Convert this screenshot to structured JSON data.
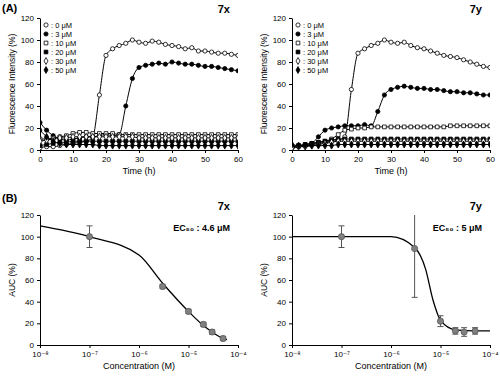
{
  "panel_labels": [
    "(A)",
    "(B)"
  ],
  "chart_data": [
    {
      "type": "line",
      "title": "7x",
      "x_label": "Time (h)",
      "y_label": "Fluorescence Intensity (%)",
      "xlim": [
        0,
        60
      ],
      "xticks": [
        0,
        10,
        20,
        30,
        40,
        50,
        60
      ],
      "ylim": [
        0,
        120
      ],
      "yticks": [
        0,
        20,
        40,
        60,
        80,
        100,
        120
      ],
      "grid": false,
      "legend": "upper left",
      "x": [
        0,
        2,
        4,
        6,
        8,
        10,
        12,
        14,
        16,
        18,
        20,
        22,
        24,
        26,
        28,
        30,
        32,
        34,
        36,
        38,
        40,
        42,
        44,
        46,
        48,
        50,
        52,
        54,
        56,
        58,
        60
      ],
      "series": [
        {
          "name": ": 0 μM",
          "color": "#000000",
          "marker": "circle-open",
          "line_style": "solid",
          "values": [
            2,
            3,
            3,
            4,
            5,
            6,
            7,
            8,
            12,
            50,
            86,
            92,
            95,
            97,
            100,
            98,
            97,
            99,
            98,
            96,
            95,
            94,
            92,
            93,
            90,
            90,
            89,
            88,
            88,
            87,
            86
          ]
        },
        {
          "name": ": 3 μM",
          "color": "#000000",
          "marker": "circle",
          "line_style": "solid",
          "values": [
            25,
            18,
            13,
            10,
            9,
            10,
            11,
            12,
            12,
            13,
            14,
            13,
            14,
            40,
            65,
            75,
            77,
            78,
            79,
            78,
            80,
            79,
            78,
            78,
            77,
            76,
            76,
            75,
            74,
            73,
            72
          ]
        },
        {
          "name": ": 10 μM",
          "color": "#000000",
          "marker": "square-open",
          "line_style": "solid",
          "values": [
            10,
            10,
            11,
            12,
            13,
            15,
            16,
            16,
            15,
            15,
            15,
            15,
            14,
            14,
            14,
            14,
            14,
            14,
            14,
            14,
            14,
            14,
            14,
            14,
            14,
            14,
            14,
            14,
            14,
            14,
            14
          ]
        },
        {
          "name": ": 20 μM",
          "color": "#000000",
          "marker": "square",
          "line_style": "solid",
          "values": [
            4,
            5,
            6,
            7,
            7,
            8,
            8,
            8,
            8,
            8,
            8,
            8,
            8,
            8,
            8,
            8,
            8,
            8,
            8,
            8,
            8,
            8,
            8,
            8,
            8,
            8,
            8,
            8,
            8,
            8,
            8
          ]
        },
        {
          "name": ": 30 μM",
          "color": "#000000",
          "marker": "diamond-open",
          "line_style": "solid",
          "values": [
            8,
            9,
            10,
            11,
            11,
            12,
            12,
            12,
            12,
            12,
            12,
            12,
            12,
            12,
            12,
            11,
            11,
            11,
            11,
            11,
            11,
            11,
            11,
            11,
            11,
            11,
            11,
            11,
            11,
            11,
            11
          ]
        },
        {
          "name": ": 50 μM",
          "color": "#000000",
          "marker": "diamond",
          "line_style": "solid",
          "values": [
            18,
            12,
            8,
            6,
            5,
            5,
            5,
            5,
            5,
            4,
            4,
            4,
            4,
            4,
            4,
            4,
            4,
            4,
            4,
            4,
            4,
            4,
            4,
            4,
            4,
            4,
            4,
            4,
            4,
            4,
            4
          ]
        }
      ]
    },
    {
      "type": "line",
      "title": "7y",
      "x_label": "Time (h)",
      "y_label": "Fluorescence Intensity (%)",
      "xlim": [
        0,
        60
      ],
      "xticks": [
        0,
        10,
        20,
        30,
        40,
        50,
        60
      ],
      "ylim": [
        0,
        120
      ],
      "yticks": [
        0,
        20,
        40,
        60,
        80,
        100,
        120
      ],
      "grid": false,
      "legend": "upper left",
      "x": [
        0,
        2,
        4,
        6,
        8,
        10,
        12,
        14,
        16,
        18,
        20,
        22,
        24,
        26,
        28,
        30,
        32,
        34,
        36,
        38,
        40,
        42,
        44,
        46,
        48,
        50,
        52,
        54,
        56,
        58,
        60
      ],
      "series": [
        {
          "name": ": 0 μM",
          "color": "#000000",
          "marker": "circle-open",
          "line_style": "solid",
          "values": [
            2,
            3,
            4,
            5,
            6,
            7,
            8,
            9,
            12,
            55,
            88,
            92,
            95,
            97,
            100,
            98,
            97,
            98,
            95,
            93,
            92,
            90,
            88,
            86,
            85,
            84,
            82,
            80,
            78,
            76,
            75
          ]
        },
        {
          "name": ": 3 μM",
          "color": "#000000",
          "marker": "circle",
          "line_style": "solid",
          "values": [
            3,
            3,
            4,
            6,
            12,
            18,
            20,
            21,
            22,
            22,
            22,
            23,
            22,
            35,
            50,
            55,
            57,
            58,
            57,
            56,
            56,
            55,
            55,
            54,
            53,
            53,
            52,
            52,
            51,
            50,
            50
          ]
        },
        {
          "name": ": 10 μM",
          "color": "#000000",
          "marker": "square-open",
          "line_style": "solid",
          "values": [
            3,
            4,
            5,
            6,
            7,
            8,
            10,
            14,
            18,
            19,
            20,
            20,
            21,
            21,
            21,
            21,
            21,
            21,
            21,
            21,
            21,
            21,
            21,
            21,
            22,
            22,
            22,
            22,
            22,
            22,
            22
          ]
        },
        {
          "name": ": 20 μM",
          "color": "#000000",
          "marker": "square",
          "line_style": "solid",
          "values": [
            3,
            4,
            5,
            6,
            7,
            8,
            9,
            10,
            10,
            10,
            10,
            10,
            10,
            10,
            10,
            10,
            10,
            10,
            10,
            10,
            10,
            10,
            10,
            10,
            10,
            10,
            10,
            10,
            10,
            10,
            10
          ]
        },
        {
          "name": ": 30 μM",
          "color": "#000000",
          "marker": "diamond-open",
          "line_style": "solid",
          "values": [
            2,
            3,
            3,
            4,
            5,
            6,
            7,
            8,
            8,
            8,
            8,
            8,
            8,
            8,
            8,
            8,
            8,
            8,
            8,
            8,
            8,
            8,
            8,
            8,
            8,
            8,
            8,
            8,
            8,
            8,
            8
          ]
        },
        {
          "name": ": 50 μM",
          "color": "#000000",
          "marker": "diamond",
          "line_style": "solid",
          "values": [
            5,
            4,
            4,
            4,
            4,
            4,
            4,
            5,
            5,
            5,
            5,
            5,
            5,
            5,
            5,
            5,
            5,
            5,
            5,
            5,
            5,
            5,
            5,
            5,
            5,
            5,
            5,
            5,
            5,
            5,
            5
          ]
        }
      ]
    },
    {
      "type": "scatter",
      "title": "7x",
      "x_label": "Concentration (M)",
      "y_label": "AUC (%)",
      "log": "x",
      "grid": false,
      "xlim": [
        1e-08,
        0.0001
      ],
      "xticks": [
        {
          "value": 1e-08,
          "label": "10⁻⁸"
        },
        {
          "value": 1e-07,
          "label": "10⁻⁷"
        },
        {
          "value": 1e-06,
          "label": "10⁻⁶"
        },
        {
          "value": 1e-05,
          "label": "10⁻⁵"
        },
        {
          "value": 0.0001,
          "label": "10⁻⁴"
        }
      ],
      "ylim": [
        0,
        120
      ],
      "yticks": [
        0,
        20,
        40,
        60,
        80,
        100,
        120
      ],
      "annotations": [
        "EC₅₀ : 4.6 μM"
      ],
      "series": [
        {
          "color": "#000000",
          "marker": "none",
          "line_style": "solid",
          "x": [
            1e-08,
            1e-07,
            1e-06,
            3e-06,
            1e-05,
            2e-05,
            3e-05,
            5e-05,
            6e-05
          ],
          "values": [
            110,
            100,
            83,
            57,
            31,
            18,
            12,
            6,
            5
          ]
        },
        {
          "color": "#808080",
          "marker": "circle",
          "line_style": "none",
          "x": [
            1e-07,
            3e-06,
            1e-05,
            2e-05,
            3e-05,
            5e-05
          ],
          "values": [
            100,
            54,
            31,
            19,
            12,
            6
          ],
          "error": [
            10,
            2,
            2,
            2,
            2,
            2
          ]
        }
      ]
    },
    {
      "type": "scatter",
      "title": "7y",
      "x_label": "Concentration (M)",
      "y_label": "AUC (%)",
      "log": "x",
      "grid": false,
      "xlim": [
        1e-08,
        0.0001
      ],
      "xticks": [
        {
          "value": 1e-08,
          "label": "10⁻⁸"
        },
        {
          "value": 1e-07,
          "label": "10⁻⁷"
        },
        {
          "value": 1e-06,
          "label": "10⁻⁶"
        },
        {
          "value": 1e-05,
          "label": "10⁻⁵"
        },
        {
          "value": 0.0001,
          "label": "10⁻⁴"
        }
      ],
      "ylim": [
        0,
        120
      ],
      "yticks": [
        0,
        20,
        40,
        60,
        80,
        100,
        120
      ],
      "annotations": [
        "EC₅₀ : 5 μM"
      ],
      "series": [
        {
          "color": "#000000",
          "marker": "none",
          "line_style": "solid",
          "x": [
            1e-08,
            1e-06,
            3e-06,
            5e-06,
            7e-06,
            1e-05,
            2e-05,
            5e-05,
            0.0001
          ],
          "values": [
            100,
            100,
            90,
            70,
            42,
            23,
            14,
            13,
            13
          ]
        },
        {
          "color": "#808080",
          "marker": "circle",
          "line_style": "none",
          "x": [
            1e-07,
            3e-06,
            1e-05,
            2e-05,
            3e-05,
            5e-05
          ],
          "values": [
            100,
            89,
            22,
            13,
            12,
            13
          ],
          "error": [
            10,
            45,
            5,
            3,
            4,
            3
          ]
        }
      ]
    }
  ]
}
